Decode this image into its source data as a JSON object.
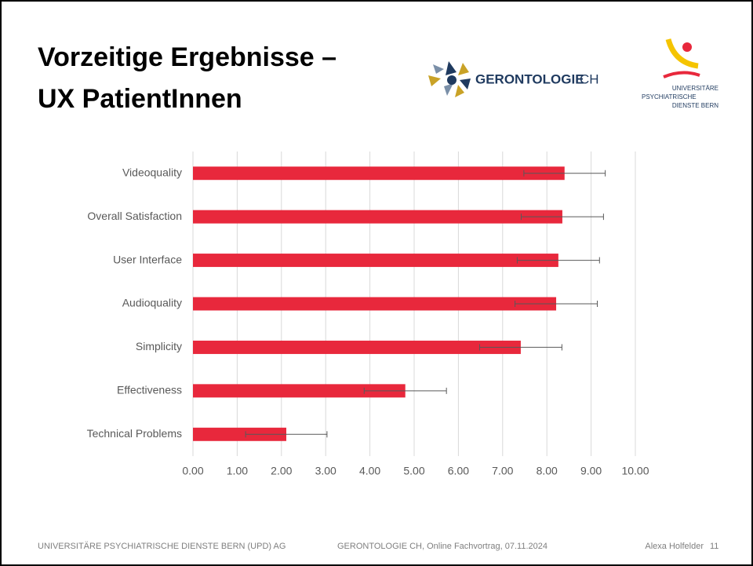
{
  "slide": {
    "title_lines": [
      "Vorzeitige Ergebnisse –",
      "UX PatientInnen"
    ],
    "logo_gerontologie": {
      "name": "GERONTOLOGIE",
      "suffix": "CH"
    },
    "logo_upd": [
      "UNIVERSITÄRE",
      "PSYCHIATRISCHE",
      "DIENSTE BERN"
    ],
    "footer": {
      "left": "UNIVERSITÄRE PSYCHIATRISCHE DIENSTE BERN (UPD) AG",
      "center": "GERONTOLOGIE CH, Online Fachvortrag, 07.11.2024",
      "author": "Alexa Holfelder",
      "page": 11
    }
  },
  "chart_data": {
    "type": "hbar_error",
    "categories": [
      "Videoquality",
      "Overall Satisfaction",
      "User Interface",
      "Audioquality",
      "Simplicity",
      "Effectiveness",
      "Technical Problems"
    ],
    "values": [
      8.4,
      8.35,
      8.26,
      8.21,
      7.41,
      4.8,
      2.11
    ],
    "errors": [
      0.92,
      0.93,
      0.93,
      0.93,
      0.93,
      0.93,
      0.92
    ],
    "color": "#e8283c",
    "xlim": [
      0,
      10
    ],
    "xticks": [
      {
        "value": 0,
        "label": "0.00"
      },
      {
        "value": 1,
        "label": "1.00"
      },
      {
        "value": 2,
        "label": "2.00"
      },
      {
        "value": 3,
        "label": "3.00"
      },
      {
        "value": 4,
        "label": "4.00"
      },
      {
        "value": 5,
        "label": "5.00"
      },
      {
        "value": 6,
        "label": "6.00"
      },
      {
        "value": 7,
        "label": "7.00"
      },
      {
        "value": 8,
        "label": "8.00"
      },
      {
        "value": 9,
        "label": "9.00"
      },
      {
        "value": 10,
        "label": "10.00"
      }
    ],
    "grid": true
  }
}
